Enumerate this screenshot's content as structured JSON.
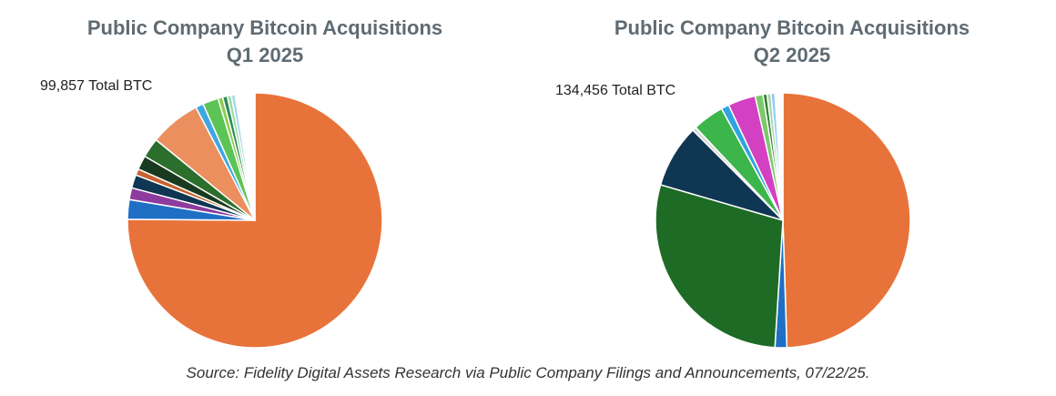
{
  "chart_data": [
    {
      "type": "pie",
      "title": "Public Company Bitcoin Acquisitions",
      "subtitle": "Q1 2025",
      "total_label": "99,857 Total BTC",
      "start_angle_deg": 0,
      "direction": "clockwise",
      "slices": [
        {
          "value": 0.755,
          "color": "#E8733A"
        },
        {
          "value": 0.025,
          "color": "#1F6FC5"
        },
        {
          "value": 0.015,
          "color": "#8E3A9E"
        },
        {
          "value": 0.017,
          "color": "#0F3652"
        },
        {
          "value": 0.008,
          "color": "#C8622E"
        },
        {
          "value": 0.018,
          "color": "#183A1F"
        },
        {
          "value": 0.025,
          "color": "#2C6E2C"
        },
        {
          "value": 0.065,
          "color": "#EB8F5F"
        },
        {
          "value": 0.01,
          "color": "#3FA7E0"
        },
        {
          "value": 0.02,
          "color": "#5CC455"
        },
        {
          "value": 0.006,
          "color": "#8CCB4E"
        },
        {
          "value": 0.006,
          "color": "#2E8B57"
        },
        {
          "value": 0.005,
          "color": "#9ADBA5"
        },
        {
          "value": 0.005,
          "color": "#A9D7EE"
        },
        {
          "value": 0.025,
          "color": "#FFFFFF"
        }
      ]
    },
    {
      "type": "pie",
      "title": "Public Company Bitcoin Acquisitions",
      "subtitle": "Q2 2025",
      "total_label": "134,456 Total BTC",
      "start_angle_deg": 0,
      "direction": "clockwise",
      "slices": [
        {
          "value": 0.495,
          "color": "#E8733A"
        },
        {
          "value": 0.015,
          "color": "#1F6FC5"
        },
        {
          "value": 0.285,
          "color": "#1E6B26"
        },
        {
          "value": 0.08,
          "color": "#0F3652"
        },
        {
          "value": 0.005,
          "color": "#D9D9D9"
        },
        {
          "value": 0.04,
          "color": "#3CB54A"
        },
        {
          "value": 0.01,
          "color": "#2FA4E0"
        },
        {
          "value": 0.035,
          "color": "#D340C2"
        },
        {
          "value": 0.01,
          "color": "#7DC96A"
        },
        {
          "value": 0.005,
          "color": "#2E7D32"
        },
        {
          "value": 0.005,
          "color": "#A5D6A7"
        },
        {
          "value": 0.005,
          "color": "#90CAF9"
        },
        {
          "value": 0.01,
          "color": "#FFFFFF"
        }
      ]
    }
  ],
  "source": "Source: Fidelity Digital Assets Research via Public Company Filings and Announcements, 07/22/25."
}
